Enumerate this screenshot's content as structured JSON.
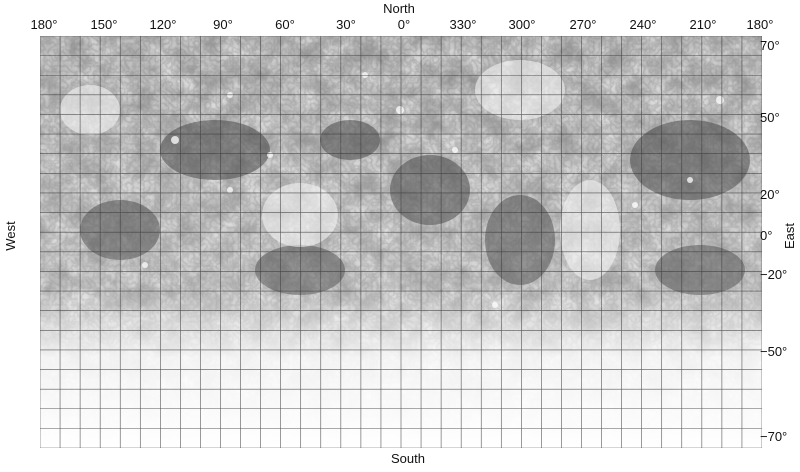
{
  "map": {
    "directions": {
      "north": "North",
      "south": "South",
      "west": "West",
      "east": "East"
    },
    "longitude_labels": [
      "180°",
      "150°",
      "120°",
      "90°",
      "60°",
      "30°",
      "0°",
      "330°",
      "300°",
      "270°",
      "240°",
      "210°",
      "180°"
    ],
    "latitude_labels": [
      "70°",
      "50°",
      "20°",
      "0°",
      "−20°",
      "−50°",
      "−70°"
    ],
    "colors": {
      "background": "#ffffff",
      "grid_lines": "#3a3a3a",
      "terrain_dark": "#4a4a4a",
      "terrain_light": "#f2f2f2"
    }
  }
}
